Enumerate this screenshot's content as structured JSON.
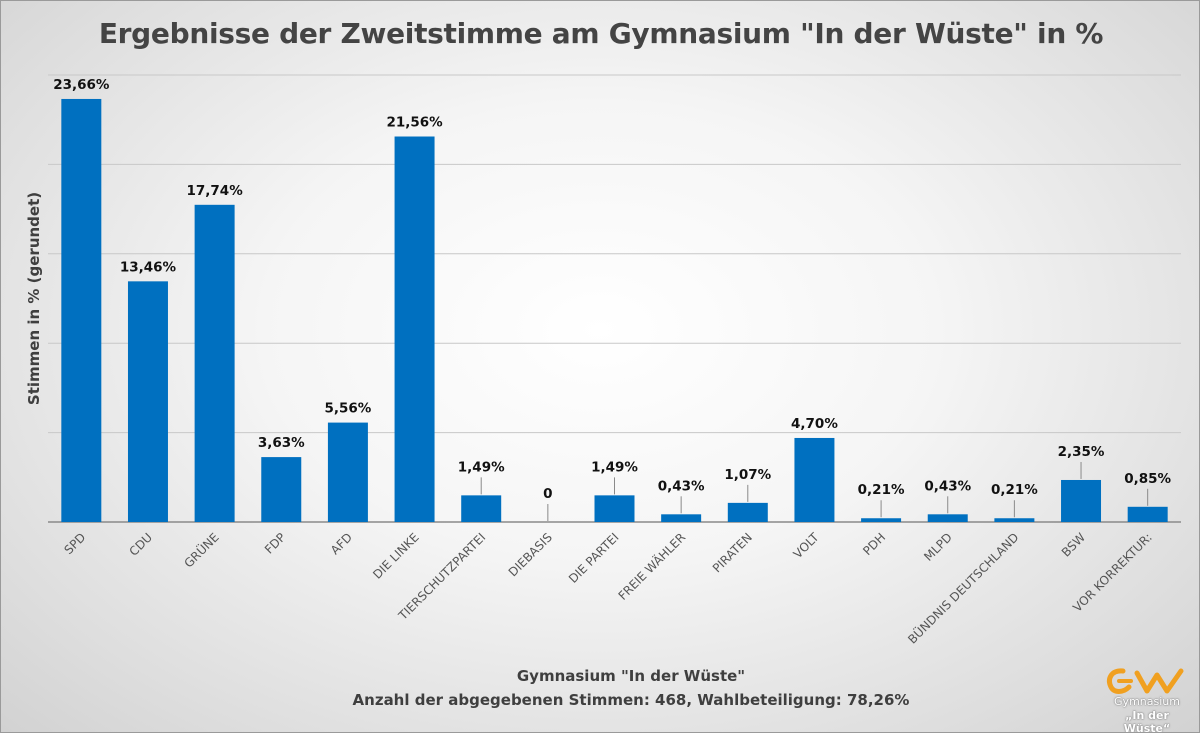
{
  "chart_data": {
    "type": "bar",
    "title": "Ergebnisse der Zweitstimme am Gymnasium \"In der Wüste\" in %",
    "ylabel": "Stimmen in % (gerundet)",
    "xlabel_lines": [
      "Gymnasium \"In der Wüste\"",
      "Anzahl der abgegebenen Stimmen: 468, Wahlbeteiligung: 78,26%"
    ],
    "categories": [
      "SPD",
      "CDU",
      "GRÜNE",
      "FDP",
      "AFD",
      "DIE LINKE",
      "TIERSCHUTZPARTEI",
      "DIEBASIS",
      "DIE PARTEI",
      "FREIE WÄHLER",
      "PIRATEN",
      "VOLT",
      "PDH",
      "MLPD",
      "BÜNDNIS DEUTSCHLAND",
      "BSW",
      "VOR KORREKTUR:"
    ],
    "values": [
      23.66,
      13.46,
      17.74,
      3.63,
      5.56,
      21.56,
      1.49,
      0,
      1.49,
      0.43,
      1.07,
      4.7,
      0.21,
      0.43,
      0.21,
      2.35,
      0.85
    ],
    "data_labels": [
      "23,66%",
      "13,46%",
      "17,74%",
      "3,63%",
      "5,56%",
      "21,56%",
      "1,49%",
      "0",
      "1,49%",
      "0,43%",
      "1,07%",
      "4,70%",
      "0,21%",
      "0,43%",
      "0,21%",
      "2,35%",
      "0,85%"
    ],
    "ylim": [
      0,
      25
    ],
    "grid": true,
    "legend": "none",
    "bar_color": "#0070c0"
  },
  "logo": {
    "line1": "Gymnasium",
    "line2": "„In der Wüste“",
    "accent": "#f0a020"
  }
}
